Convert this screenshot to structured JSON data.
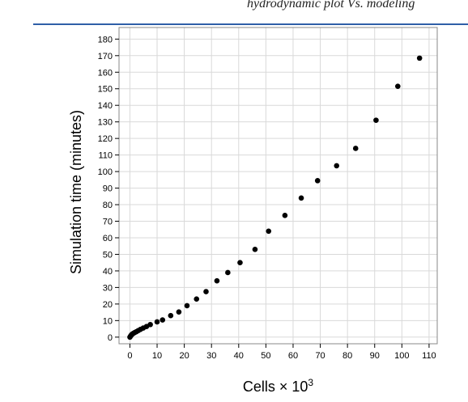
{
  "header": {
    "running_text": "hydrodynamic plot Vs. modeling"
  },
  "colors": {
    "rule": "#2f5fa7",
    "grid": "#d9d9d9",
    "frame": "#888888",
    "points": "#000000"
  },
  "chart_data": {
    "type": "scatter",
    "title": "",
    "xlabel": "Cells × 10",
    "xlabel_superscript": "3",
    "ylabel": "Simulation time (minutes)",
    "xlim": [
      -4,
      113
    ],
    "ylim": [
      -4,
      187
    ],
    "x_ticks": [
      0,
      10,
      20,
      30,
      40,
      50,
      60,
      70,
      80,
      90,
      100,
      110
    ],
    "y_ticks": [
      0,
      10,
      20,
      30,
      40,
      50,
      60,
      70,
      80,
      90,
      100,
      110,
      120,
      130,
      140,
      150,
      160,
      170,
      180
    ],
    "grid": true,
    "legend": "none",
    "points": [
      {
        "x": 0.0,
        "y": 0.0
      },
      {
        "x": 0.2,
        "y": 0.5
      },
      {
        "x": 0.4,
        "y": 1.0
      },
      {
        "x": 0.6,
        "y": 1.4
      },
      {
        "x": 0.9,
        "y": 1.9
      },
      {
        "x": 1.3,
        "y": 2.3
      },
      {
        "x": 1.8,
        "y": 2.8
      },
      {
        "x": 2.4,
        "y": 3.3
      },
      {
        "x": 3.1,
        "y": 4.0
      },
      {
        "x": 3.9,
        "y": 4.7
      },
      {
        "x": 4.9,
        "y": 5.5
      },
      {
        "x": 6.1,
        "y": 6.4
      },
      {
        "x": 7.5,
        "y": 7.6
      },
      {
        "x": 10.0,
        "y": 9.2
      },
      {
        "x": 12.0,
        "y": 10.4
      },
      {
        "x": 15.0,
        "y": 13.0
      },
      {
        "x": 18.0,
        "y": 15.2
      },
      {
        "x": 21.0,
        "y": 19.0
      },
      {
        "x": 24.5,
        "y": 23.0
      },
      {
        "x": 28.0,
        "y": 27.5
      },
      {
        "x": 32.0,
        "y": 34.0
      },
      {
        "x": 36.0,
        "y": 39.0
      },
      {
        "x": 40.5,
        "y": 45.0
      },
      {
        "x": 46.0,
        "y": 53.0
      },
      {
        "x": 51.0,
        "y": 64.0
      },
      {
        "x": 57.0,
        "y": 73.5
      },
      {
        "x": 63.0,
        "y": 84.0
      },
      {
        "x": 69.0,
        "y": 94.5
      },
      {
        "x": 76.0,
        "y": 103.5
      },
      {
        "x": 83.0,
        "y": 114.0
      },
      {
        "x": 90.5,
        "y": 131.0
      },
      {
        "x": 98.5,
        "y": 151.5
      },
      {
        "x": 106.5,
        "y": 168.5
      }
    ]
  }
}
